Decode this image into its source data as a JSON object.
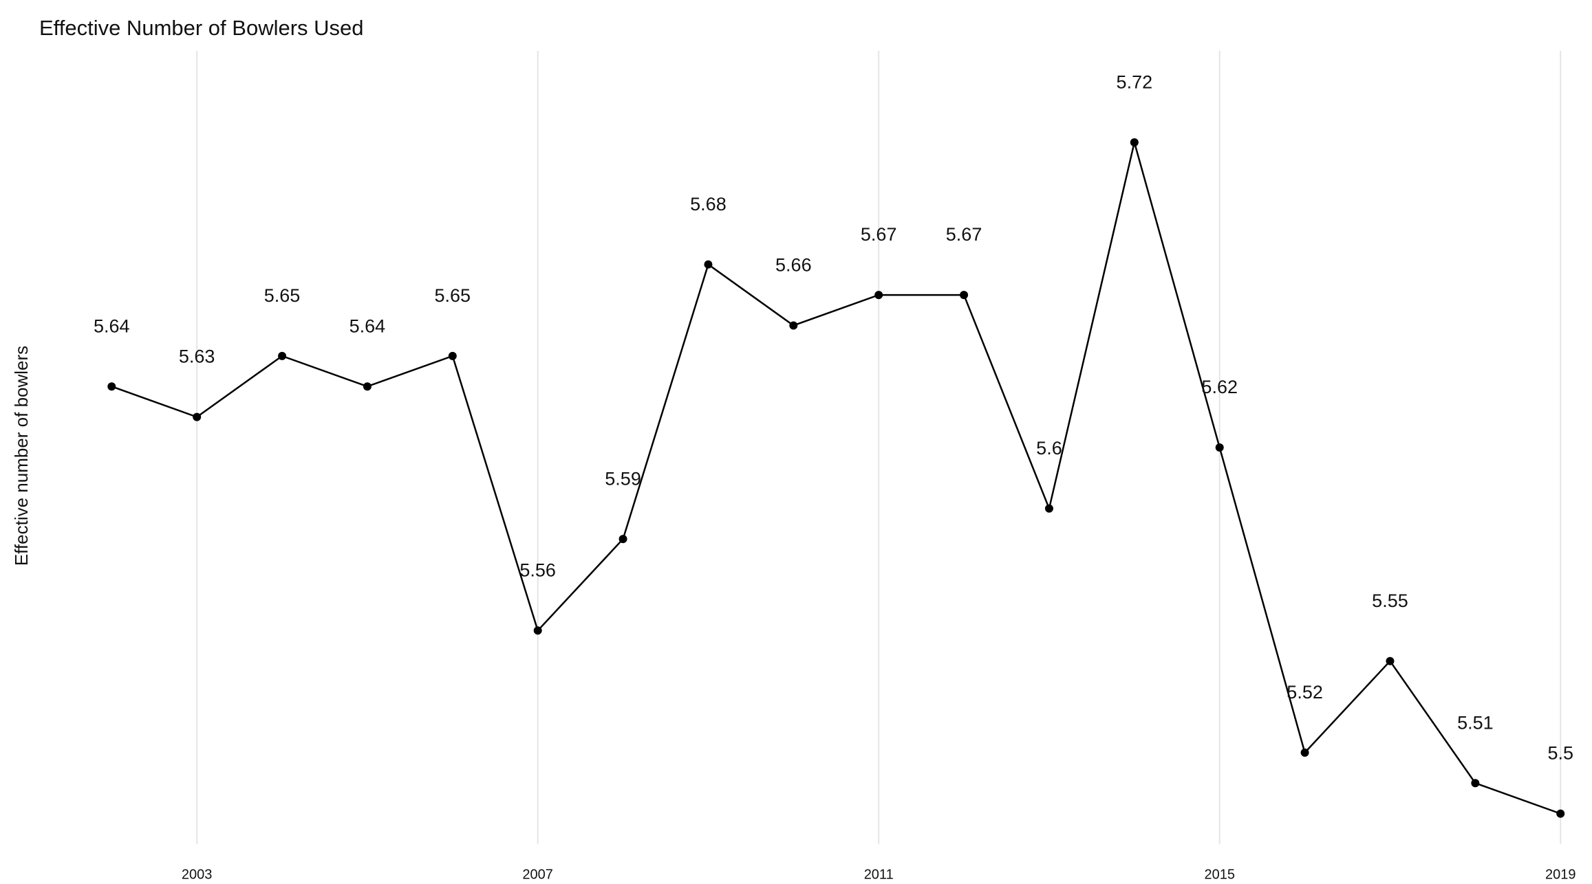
{
  "chart_data": {
    "type": "line",
    "title": "Effective Number of Bowlers Used",
    "y_label": "Effective number of bowlers",
    "x": [
      2002,
      2003,
      2004,
      2005,
      2006,
      2007,
      2008,
      2009,
      2010,
      2011,
      2012,
      2013,
      2014,
      2015,
      2016,
      2017,
      2018,
      2019
    ],
    "values": [
      5.64,
      5.63,
      5.65,
      5.64,
      5.65,
      5.56,
      5.59,
      5.68,
      5.66,
      5.67,
      5.67,
      5.6,
      5.72,
      5.62,
      5.52,
      5.55,
      5.51,
      5.5
    ],
    "color": "#000000",
    "xlim": [
      2001.15,
      2019.2
    ],
    "xticks": [
      2003,
      2007,
      2011,
      2015,
      2019
    ],
    "ylim": [
      5.49,
      5.75
    ],
    "grid": true
  }
}
